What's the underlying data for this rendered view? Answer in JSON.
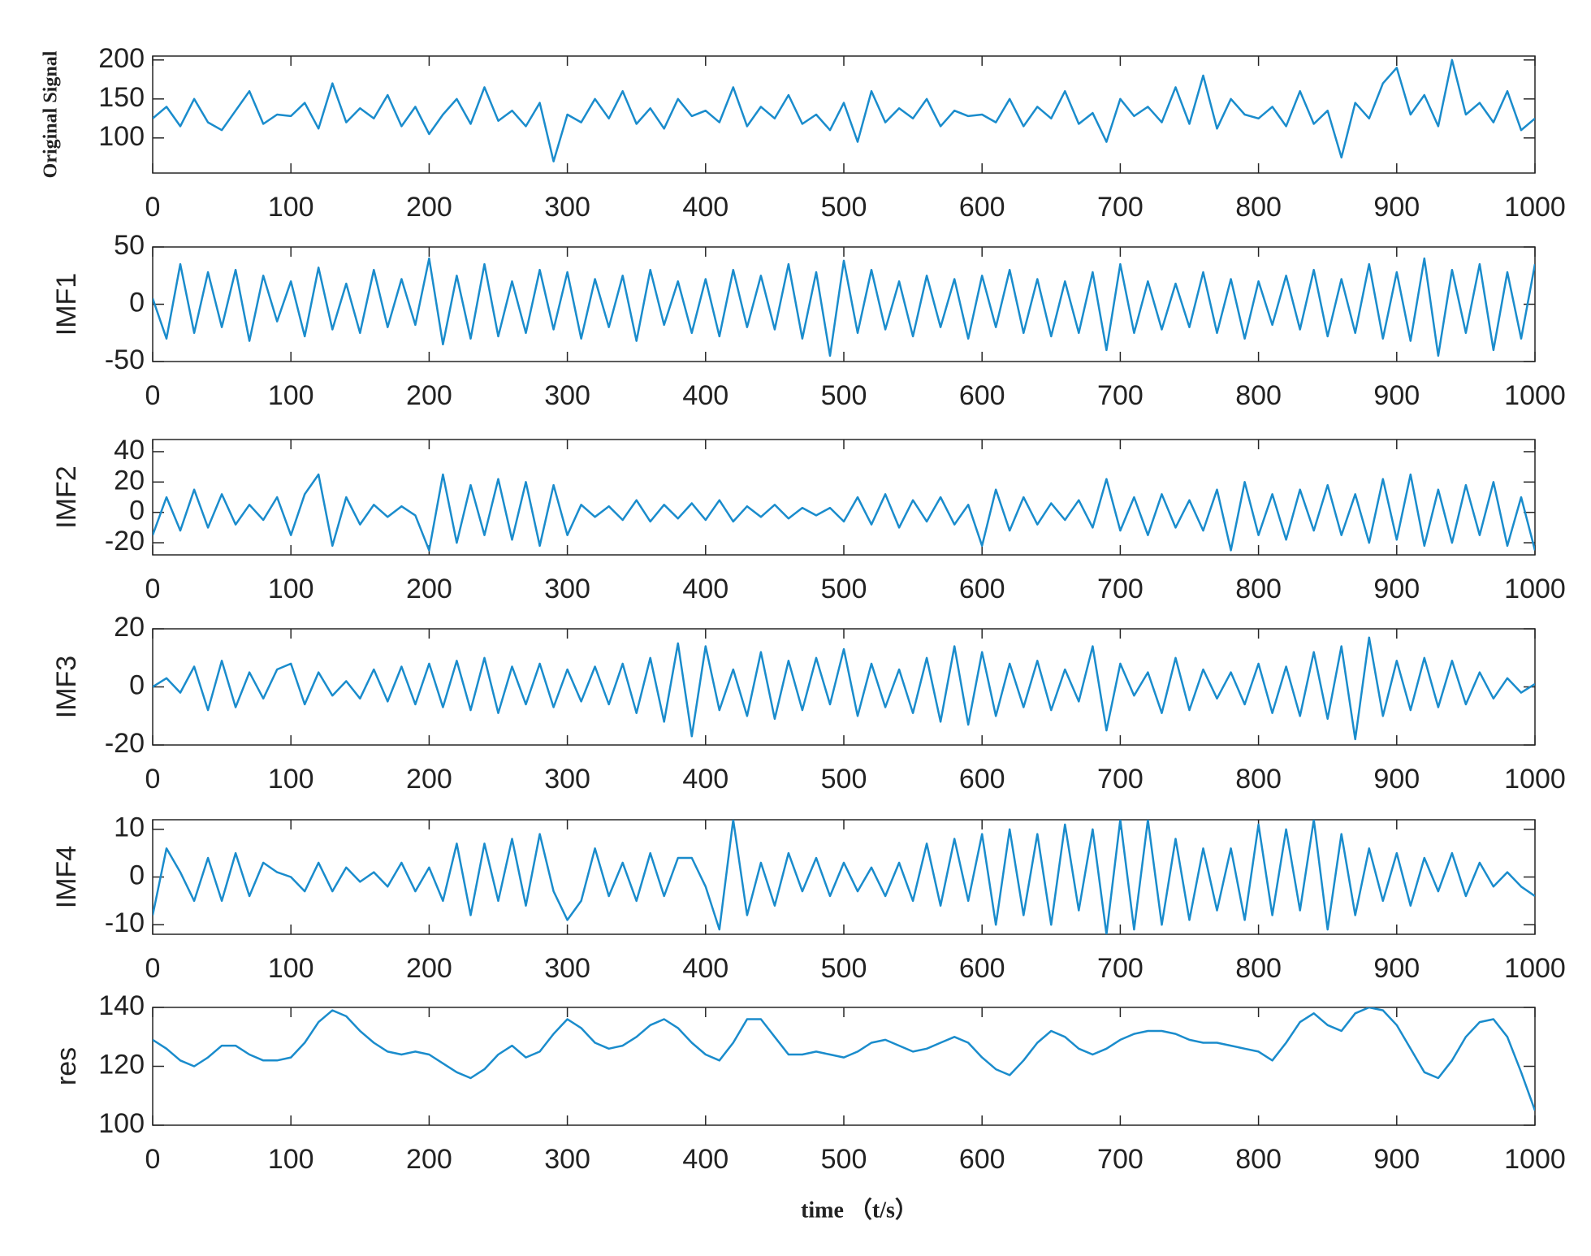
{
  "chart_data": [
    {
      "type": "line",
      "ylabel": "Original Signal",
      "color": "#1a8ccc",
      "xlim": [
        0,
        1000
      ],
      "ylim": [
        55,
        205
      ],
      "xticks": [
        0,
        100,
        200,
        300,
        400,
        500,
        600,
        700,
        800,
        900,
        1000
      ],
      "yticks": [
        100,
        150,
        200
      ],
      "x": [
        0,
        10,
        20,
        30,
        40,
        50,
        60,
        70,
        80,
        90,
        100,
        110,
        120,
        130,
        140,
        150,
        160,
        170,
        180,
        190,
        200,
        210,
        220,
        230,
        240,
        250,
        260,
        270,
        280,
        290,
        300,
        310,
        320,
        330,
        340,
        350,
        360,
        370,
        380,
        390,
        400,
        410,
        420,
        430,
        440,
        450,
        460,
        470,
        480,
        490,
        500,
        510,
        520,
        530,
        540,
        550,
        560,
        570,
        580,
        590,
        600,
        610,
        620,
        630,
        640,
        650,
        660,
        670,
        680,
        690,
        700,
        710,
        720,
        730,
        740,
        750,
        760,
        770,
        780,
        790,
        800,
        810,
        820,
        830,
        840,
        850,
        860,
        870,
        880,
        890,
        900,
        910,
        920,
        930,
        940,
        950,
        960,
        970,
        980,
        990,
        1000
      ],
      "values": [
        125,
        140,
        115,
        150,
        120,
        110,
        135,
        160,
        118,
        130,
        128,
        145,
        112,
        170,
        120,
        138,
        125,
        155,
        115,
        140,
        105,
        130,
        150,
        118,
        165,
        122,
        135,
        115,
        145,
        70,
        130,
        120,
        150,
        125,
        160,
        118,
        138,
        112,
        150,
        128,
        135,
        120,
        165,
        115,
        140,
        125,
        155,
        118,
        130,
        110,
        145,
        95,
        160,
        120,
        138,
        125,
        150,
        115,
        135,
        128,
        130,
        120,
        150,
        115,
        140,
        125,
        160,
        118,
        132,
        95,
        150,
        128,
        140,
        120,
        165,
        118,
        180,
        112,
        150,
        130,
        125,
        140,
        115,
        160,
        118,
        135,
        75,
        145,
        125,
        170,
        190,
        130,
        155,
        115,
        200,
        130,
        145,
        120,
        160,
        110,
        125
      ]
    },
    {
      "type": "line",
      "ylabel": "IMF1",
      "color": "#1a8ccc",
      "xlim": [
        0,
        1000
      ],
      "ylim": [
        -50,
        50
      ],
      "xticks": [
        0,
        100,
        200,
        300,
        400,
        500,
        600,
        700,
        800,
        900,
        1000
      ],
      "yticks": [
        -50,
        0,
        50
      ],
      "x": [
        0,
        10,
        20,
        30,
        40,
        50,
        60,
        70,
        80,
        90,
        100,
        110,
        120,
        130,
        140,
        150,
        160,
        170,
        180,
        190,
        200,
        210,
        220,
        230,
        240,
        250,
        260,
        270,
        280,
        290,
        300,
        310,
        320,
        330,
        340,
        350,
        360,
        370,
        380,
        390,
        400,
        410,
        420,
        430,
        440,
        450,
        460,
        470,
        480,
        490,
        500,
        510,
        520,
        530,
        540,
        550,
        560,
        570,
        580,
        590,
        600,
        610,
        620,
        630,
        640,
        650,
        660,
        670,
        680,
        690,
        700,
        710,
        720,
        730,
        740,
        750,
        760,
        770,
        780,
        790,
        800,
        810,
        820,
        830,
        840,
        850,
        860,
        870,
        880,
        890,
        900,
        910,
        920,
        930,
        940,
        950,
        960,
        970,
        980,
        990,
        1000
      ],
      "values": [
        5,
        -30,
        35,
        -25,
        28,
        -20,
        30,
        -32,
        25,
        -15,
        20,
        -28,
        32,
        -22,
        18,
        -25,
        30,
        -20,
        22,
        -18,
        40,
        -35,
        25,
        -30,
        35,
        -28,
        20,
        -25,
        30,
        -22,
        28,
        -30,
        22,
        -20,
        25,
        -32,
        30,
        -18,
        20,
        -25,
        22,
        -28,
        30,
        -20,
        25,
        -22,
        35,
        -30,
        28,
        -45,
        38,
        -25,
        30,
        -22,
        20,
        -28,
        25,
        -20,
        22,
        -30,
        25,
        -20,
        30,
        -25,
        22,
        -28,
        20,
        -25,
        28,
        -40,
        35,
        -25,
        20,
        -22,
        18,
        -20,
        28,
        -25,
        22,
        -30,
        20,
        -18,
        25,
        -22,
        30,
        -28,
        22,
        -25,
        35,
        -30,
        28,
        -32,
        40,
        -45,
        30,
        -25,
        35,
        -40,
        28,
        -30,
        35
      ]
    },
    {
      "type": "line",
      "ylabel": "IMF2",
      "color": "#1a8ccc",
      "xlim": [
        0,
        1000
      ],
      "ylim": [
        -28,
        48
      ],
      "xticks": [
        0,
        100,
        200,
        300,
        400,
        500,
        600,
        700,
        800,
        900,
        1000
      ],
      "yticks": [
        -20,
        0,
        20,
        40
      ],
      "x": [
        0,
        10,
        20,
        30,
        40,
        50,
        60,
        70,
        80,
        90,
        100,
        110,
        120,
        130,
        140,
        150,
        160,
        170,
        180,
        190,
        200,
        210,
        220,
        230,
        240,
        250,
        260,
        270,
        280,
        290,
        300,
        310,
        320,
        330,
        340,
        350,
        360,
        370,
        380,
        390,
        400,
        410,
        420,
        430,
        440,
        450,
        460,
        470,
        480,
        490,
        500,
        510,
        520,
        530,
        540,
        550,
        560,
        570,
        580,
        590,
        600,
        610,
        620,
        630,
        640,
        650,
        660,
        670,
        680,
        690,
        700,
        710,
        720,
        730,
        740,
        750,
        760,
        770,
        780,
        790,
        800,
        810,
        820,
        830,
        840,
        850,
        860,
        870,
        880,
        890,
        900,
        910,
        920,
        930,
        940,
        950,
        960,
        970,
        980,
        990,
        1000
      ],
      "values": [
        -15,
        10,
        -12,
        15,
        -10,
        12,
        -8,
        5,
        -5,
        10,
        -15,
        12,
        25,
        -22,
        10,
        -8,
        5,
        -3,
        4,
        -2,
        -25,
        25,
        -20,
        18,
        -15,
        22,
        -18,
        20,
        -22,
        18,
        -15,
        5,
        -3,
        4,
        -5,
        8,
        -6,
        5,
        -4,
        6,
        -5,
        8,
        -6,
        4,
        -3,
        5,
        -4,
        3,
        -2,
        3,
        -6,
        10,
        -8,
        12,
        -10,
        8,
        -6,
        10,
        -8,
        5,
        -22,
        15,
        -12,
        10,
        -8,
        6,
        -5,
        8,
        -10,
        22,
        -12,
        10,
        -15,
        12,
        -10,
        8,
        -12,
        15,
        -25,
        20,
        -15,
        12,
        -18,
        15,
        -12,
        18,
        -15,
        12,
        -20,
        22,
        -18,
        25,
        -22,
        15,
        -20,
        18,
        -15,
        20,
        -22,
        10,
        -25
      ]
    },
    {
      "type": "line",
      "ylabel": "IMF3",
      "color": "#1a8ccc",
      "xlim": [
        0,
        1000
      ],
      "ylim": [
        -20,
        20
      ],
      "xticks": [
        0,
        100,
        200,
        300,
        400,
        500,
        600,
        700,
        800,
        900,
        1000
      ],
      "yticks": [
        -20,
        0,
        20
      ],
      "x": [
        0,
        10,
        20,
        30,
        40,
        50,
        60,
        70,
        80,
        90,
        100,
        110,
        120,
        130,
        140,
        150,
        160,
        170,
        180,
        190,
        200,
        210,
        220,
        230,
        240,
        250,
        260,
        270,
        280,
        290,
        300,
        310,
        320,
        330,
        340,
        350,
        360,
        370,
        380,
        390,
        400,
        410,
        420,
        430,
        440,
        450,
        460,
        470,
        480,
        490,
        500,
        510,
        520,
        530,
        540,
        550,
        560,
        570,
        580,
        590,
        600,
        610,
        620,
        630,
        640,
        650,
        660,
        670,
        680,
        690,
        700,
        710,
        720,
        730,
        740,
        750,
        760,
        770,
        780,
        790,
        800,
        810,
        820,
        830,
        840,
        850,
        860,
        870,
        880,
        890,
        900,
        910,
        920,
        930,
        940,
        950,
        960,
        970,
        980,
        990,
        1000
      ],
      "values": [
        0,
        3,
        -2,
        7,
        -8,
        9,
        -7,
        5,
        -4,
        6,
        8,
        -6,
        5,
        -3,
        2,
        -4,
        6,
        -5,
        7,
        -6,
        8,
        -7,
        9,
        -8,
        10,
        -9,
        7,
        -6,
        8,
        -7,
        6,
        -5,
        7,
        -6,
        8,
        -9,
        10,
        -12,
        15,
        -17,
        14,
        -8,
        6,
        -10,
        12,
        -11,
        9,
        -8,
        10,
        -6,
        13,
        -10,
        8,
        -7,
        6,
        -9,
        10,
        -12,
        14,
        -13,
        12,
        -10,
        8,
        -7,
        9,
        -8,
        6,
        -5,
        14,
        -15,
        8,
        -3,
        5,
        -9,
        10,
        -8,
        6,
        -4,
        5,
        -6,
        8,
        -9,
        7,
        -10,
        12,
        -11,
        14,
        -18,
        17,
        -10,
        9,
        -8,
        10,
        -7,
        9,
        -6,
        5,
        -4,
        3,
        -2,
        1
      ]
    },
    {
      "type": "line",
      "ylabel": "IMF4",
      "color": "#1a8ccc",
      "xlim": [
        0,
        1000
      ],
      "ylim": [
        -12,
        12
      ],
      "xticks": [
        0,
        100,
        200,
        300,
        400,
        500,
        600,
        700,
        800,
        900,
        1000
      ],
      "yticks": [
        -10,
        0,
        10
      ],
      "x": [
        0,
        10,
        20,
        30,
        40,
        50,
        60,
        70,
        80,
        90,
        100,
        110,
        120,
        130,
        140,
        150,
        160,
        170,
        180,
        190,
        200,
        210,
        220,
        230,
        240,
        250,
        260,
        270,
        280,
        290,
        300,
        310,
        320,
        330,
        340,
        350,
        360,
        370,
        380,
        390,
        400,
        410,
        420,
        430,
        440,
        450,
        460,
        470,
        480,
        490,
        500,
        510,
        520,
        530,
        540,
        550,
        560,
        570,
        580,
        590,
        600,
        610,
        620,
        630,
        640,
        650,
        660,
        670,
        680,
        690,
        700,
        710,
        720,
        730,
        740,
        750,
        760,
        770,
        780,
        790,
        800,
        810,
        820,
        830,
        840,
        850,
        860,
        870,
        880,
        890,
        900,
        910,
        920,
        930,
        940,
        950,
        960,
        970,
        980,
        990,
        1000
      ],
      "values": [
        -8,
        6,
        1,
        -5,
        4,
        -5,
        5,
        -4,
        3,
        1,
        0,
        -3,
        3,
        -3,
        2,
        -1,
        1,
        -2,
        3,
        -3,
        2,
        -5,
        7,
        -8,
        7,
        -5,
        8,
        -6,
        9,
        -3,
        -9,
        -5,
        6,
        -4,
        3,
        -5,
        5,
        -4,
        4,
        4,
        -2,
        -11,
        12,
        -8,
        3,
        -6,
        5,
        -3,
        4,
        -4,
        3,
        -3,
        2,
        -4,
        3,
        -5,
        7,
        -6,
        8,
        -5,
        9,
        -10,
        10,
        -8,
        9,
        -10,
        11,
        -7,
        10,
        -12,
        12,
        -11,
        12,
        -10,
        8,
        -9,
        6,
        -7,
        6,
        -9,
        11,
        -8,
        10,
        -7,
        12,
        -11,
        9,
        -8,
        6,
        -5,
        5,
        -6,
        4,
        -3,
        5,
        -4,
        3,
        -2,
        1,
        -2,
        -4
      ]
    },
    {
      "type": "line",
      "ylabel": "res",
      "xlabel": "time （t/s）",
      "color": "#1a8ccc",
      "xlim": [
        0,
        1000
      ],
      "ylim": [
        100,
        140
      ],
      "xticks": [
        0,
        100,
        200,
        300,
        400,
        500,
        600,
        700,
        800,
        900,
        1000
      ],
      "yticks": [
        100,
        120,
        140
      ],
      "x": [
        0,
        10,
        20,
        30,
        40,
        50,
        60,
        70,
        80,
        90,
        100,
        110,
        120,
        130,
        140,
        150,
        160,
        170,
        180,
        190,
        200,
        210,
        220,
        230,
        240,
        250,
        260,
        270,
        280,
        290,
        300,
        310,
        320,
        330,
        340,
        350,
        360,
        370,
        380,
        390,
        400,
        410,
        420,
        430,
        440,
        450,
        460,
        470,
        480,
        490,
        500,
        510,
        520,
        530,
        540,
        550,
        560,
        570,
        580,
        590,
        600,
        610,
        620,
        630,
        640,
        650,
        660,
        670,
        680,
        690,
        700,
        710,
        720,
        730,
        740,
        750,
        760,
        770,
        780,
        790,
        800,
        810,
        820,
        830,
        840,
        850,
        860,
        870,
        880,
        890,
        900,
        910,
        920,
        930,
        940,
        950,
        960,
        970,
        980,
        990,
        1000
      ],
      "values": [
        129,
        126,
        122,
        120,
        123,
        127,
        127,
        124,
        122,
        122,
        123,
        128,
        135,
        139,
        137,
        132,
        128,
        125,
        124,
        125,
        124,
        121,
        118,
        116,
        119,
        124,
        127,
        123,
        125,
        131,
        136,
        133,
        128,
        126,
        127,
        130,
        134,
        136,
        133,
        128,
        124,
        122,
        128,
        136,
        136,
        130,
        124,
        124,
        125,
        124,
        123,
        125,
        128,
        129,
        127,
        125,
        126,
        128,
        130,
        128,
        123,
        119,
        117,
        122,
        128,
        132,
        130,
        126,
        124,
        126,
        129,
        131,
        132,
        132,
        131,
        129,
        128,
        128,
        127,
        126,
        125,
        122,
        128,
        135,
        138,
        134,
        132,
        138,
        140,
        139,
        134,
        126,
        118,
        116,
        122,
        130,
        135,
        136,
        130,
        118,
        105
      ]
    }
  ]
}
